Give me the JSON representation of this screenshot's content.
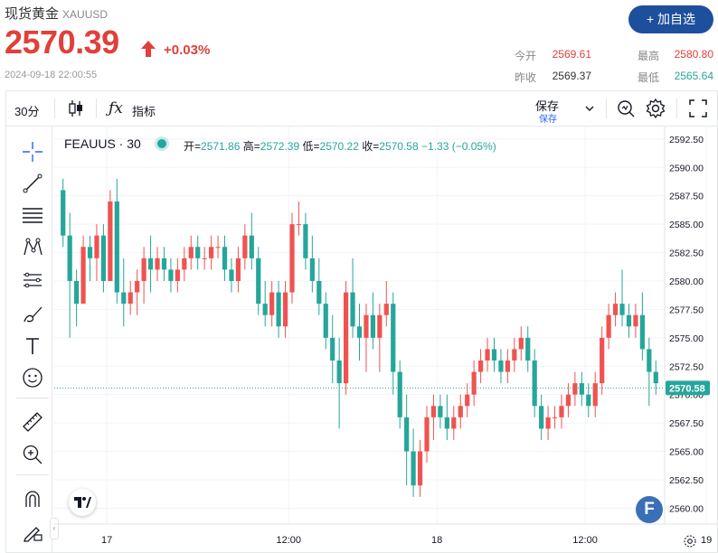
{
  "header": {
    "name": "现货黄金",
    "symbol": "XAUUSD",
    "price": "2570.39",
    "change_pct": "+0.03%",
    "timestamp": "2024-09-18 22:00:55",
    "watch_button": "+ 加自选",
    "stats": [
      {
        "label": "今开",
        "value": "2569.61",
        "color": "#e0403a"
      },
      {
        "label": "最高",
        "value": "2580.80",
        "color": "#e0403a"
      },
      {
        "label": "昨收",
        "value": "2569.37",
        "color": "#333333"
      },
      {
        "label": "最低",
        "value": "2565.64",
        "color": "#26a69a"
      }
    ]
  },
  "toolbar": {
    "interval": "30分",
    "indicators": "指标",
    "save": "保存",
    "save_sub": "保存"
  },
  "legend": {
    "symbol": "FEAUUS · 30",
    "open_label": "开=",
    "open": "2571.86",
    "high_label": "高=",
    "high": "2572.39",
    "low_label": "低=",
    "low": "2570.22",
    "close_label": "收=",
    "close": "2570.58",
    "change": "−1.33 (−0.05%)"
  },
  "left_tools": [
    "crosshair-icon",
    "trend-line-icon",
    "fib-lines-icon",
    "pattern-icon",
    "measure-lines-icon",
    "brush-icon",
    "text-icon",
    "emoji-icon",
    "ruler-icon",
    "zoom-icon",
    "magnet-icon",
    "lock-draw-icon"
  ],
  "colors": {
    "up": "#ef5350",
    "down": "#26a69a",
    "accent": "#1e4f9c",
    "price_red": "#e0403a"
  },
  "chart_data": {
    "type": "candlestick",
    "xlabels": [
      "17",
      "12:00",
      "18",
      "12:00",
      "19"
    ],
    "ylim": [
      2558.6,
      2593.6
    ],
    "yticks": [
      "2592.50",
      "2590.00",
      "2587.50",
      "2585.00",
      "2582.50",
      "2580.00",
      "2577.50",
      "2575.00",
      "2572.50",
      "2570.00",
      "2567.50",
      "2565.00",
      "2562.50",
      "2560.00"
    ],
    "last_price": "2570.58",
    "last_price_value": 2570.58,
    "candles": [
      [
        2588,
        2589,
        2583,
        2584
      ],
      [
        2584,
        2586,
        2575,
        2580
      ],
      [
        2580,
        2581,
        2576,
        2578
      ],
      [
        2578,
        2584,
        2578,
        2583
      ],
      [
        2583,
        2584,
        2580,
        2582
      ],
      [
        2582,
        2585,
        2580,
        2584
      ],
      [
        2584,
        2585,
        2579,
        2580
      ],
      [
        2580,
        2588,
        2580,
        2587
      ],
      [
        2587,
        2589,
        2578,
        2579
      ],
      [
        2579,
        2582,
        2576,
        2578
      ],
      [
        2578,
        2580,
        2577,
        2579
      ],
      [
        2579,
        2581,
        2577,
        2580
      ],
      [
        2580,
        2583,
        2578,
        2582
      ],
      [
        2582,
        2584,
        2579,
        2581
      ],
      [
        2581,
        2583,
        2580,
        2582
      ],
      [
        2582,
        2583,
        2580,
        2581
      ],
      [
        2581,
        2582,
        2579,
        2580
      ],
      [
        2580,
        2582,
        2579,
        2581
      ],
      [
        2581,
        2583,
        2580,
        2582
      ],
      [
        2582,
        2584,
        2581,
        2583
      ],
      [
        2583,
        2584,
        2581,
        2582
      ],
      [
        2582,
        2583,
        2581,
        2582
      ],
      [
        2582,
        2584,
        2581,
        2583
      ],
      [
        2583,
        2584,
        2582,
        2583
      ],
      [
        2583,
        2584,
        2580,
        2581
      ],
      [
        2581,
        2582,
        2579,
        2580
      ],
      [
        2580,
        2583,
        2579,
        2582
      ],
      [
        2582,
        2585,
        2581,
        2584
      ],
      [
        2584,
        2586,
        2581,
        2582
      ],
      [
        2582,
        2583,
        2577,
        2578
      ],
      [
        2578,
        2580,
        2576,
        2577
      ],
      [
        2577,
        2580,
        2576,
        2579
      ],
      [
        2579,
        2580,
        2575,
        2576
      ],
      [
        2576,
        2580,
        2575,
        2579
      ],
      [
        2579,
        2586,
        2578,
        2585
      ],
      [
        2585,
        2587,
        2584,
        2585
      ],
      [
        2585,
        2586,
        2581,
        2582
      ],
      [
        2582,
        2584,
        2579,
        2580
      ],
      [
        2580,
        2582,
        2577,
        2578
      ],
      [
        2578,
        2579,
        2574,
        2575
      ],
      [
        2575,
        2577,
        2571,
        2573
      ],
      [
        2573,
        2575,
        2567,
        2571
      ],
      [
        2571,
        2580,
        2570,
        2579
      ],
      [
        2579,
        2582,
        2575,
        2576
      ],
      [
        2576,
        2578,
        2573,
        2575
      ],
      [
        2575,
        2578,
        2572,
        2577
      ],
      [
        2577,
        2579,
        2574,
        2575
      ],
      [
        2575,
        2578,
        2572,
        2577
      ],
      [
        2577,
        2580,
        2576,
        2578
      ],
      [
        2578,
        2579,
        2570,
        2572
      ],
      [
        2572,
        2573,
        2567,
        2568
      ],
      [
        2568,
        2570,
        2562,
        2565
      ],
      [
        2565,
        2567,
        2561,
        2562
      ],
      [
        2562,
        2566,
        2561,
        2565
      ],
      [
        2565,
        2569,
        2564,
        2568
      ],
      [
        2568,
        2570,
        2566,
        2569
      ],
      [
        2569,
        2570,
        2567,
        2568
      ],
      [
        2568,
        2570,
        2566,
        2567
      ],
      [
        2567,
        2569,
        2566,
        2568
      ],
      [
        2568,
        2570,
        2567,
        2569
      ],
      [
        2569,
        2571,
        2568,
        2570
      ],
      [
        2570,
        2573,
        2569,
        2572
      ],
      [
        2572,
        2574,
        2571,
        2573
      ],
      [
        2573,
        2575,
        2572,
        2574
      ],
      [
        2574,
        2575,
        2572,
        2573
      ],
      [
        2573,
        2574,
        2571,
        2572
      ],
      [
        2572,
        2574,
        2571,
        2573
      ],
      [
        2573,
        2575,
        2572,
        2574
      ],
      [
        2574,
        2576,
        2573,
        2575
      ],
      [
        2575,
        2576,
        2572,
        2573
      ],
      [
        2573,
        2574,
        2568,
        2569
      ],
      [
        2569,
        2570,
        2566,
        2567
      ],
      [
        2567,
        2569,
        2566,
        2568
      ],
      [
        2568,
        2569,
        2567,
        2568
      ],
      [
        2568,
        2570,
        2567,
        2569
      ],
      [
        2569,
        2571,
        2568,
        2570
      ],
      [
        2570,
        2572,
        2569,
        2571
      ],
      [
        2571,
        2572,
        2569,
        2570
      ],
      [
        2570,
        2571,
        2568,
        2569
      ],
      [
        2569,
        2572,
        2568,
        2571
      ],
      [
        2571,
        2576,
        2570,
        2575
      ],
      [
        2575,
        2578,
        2574,
        2577
      ],
      [
        2577,
        2579,
        2576,
        2578
      ],
      [
        2578,
        2581,
        2576,
        2577
      ],
      [
        2577,
        2578,
        2575,
        2576
      ],
      [
        2576,
        2578,
        2575,
        2577
      ],
      [
        2577,
        2579,
        2573,
        2574
      ],
      [
        2574,
        2575,
        2569,
        2572
      ],
      [
        2572,
        2573,
        2570,
        2571
      ]
    ]
  }
}
